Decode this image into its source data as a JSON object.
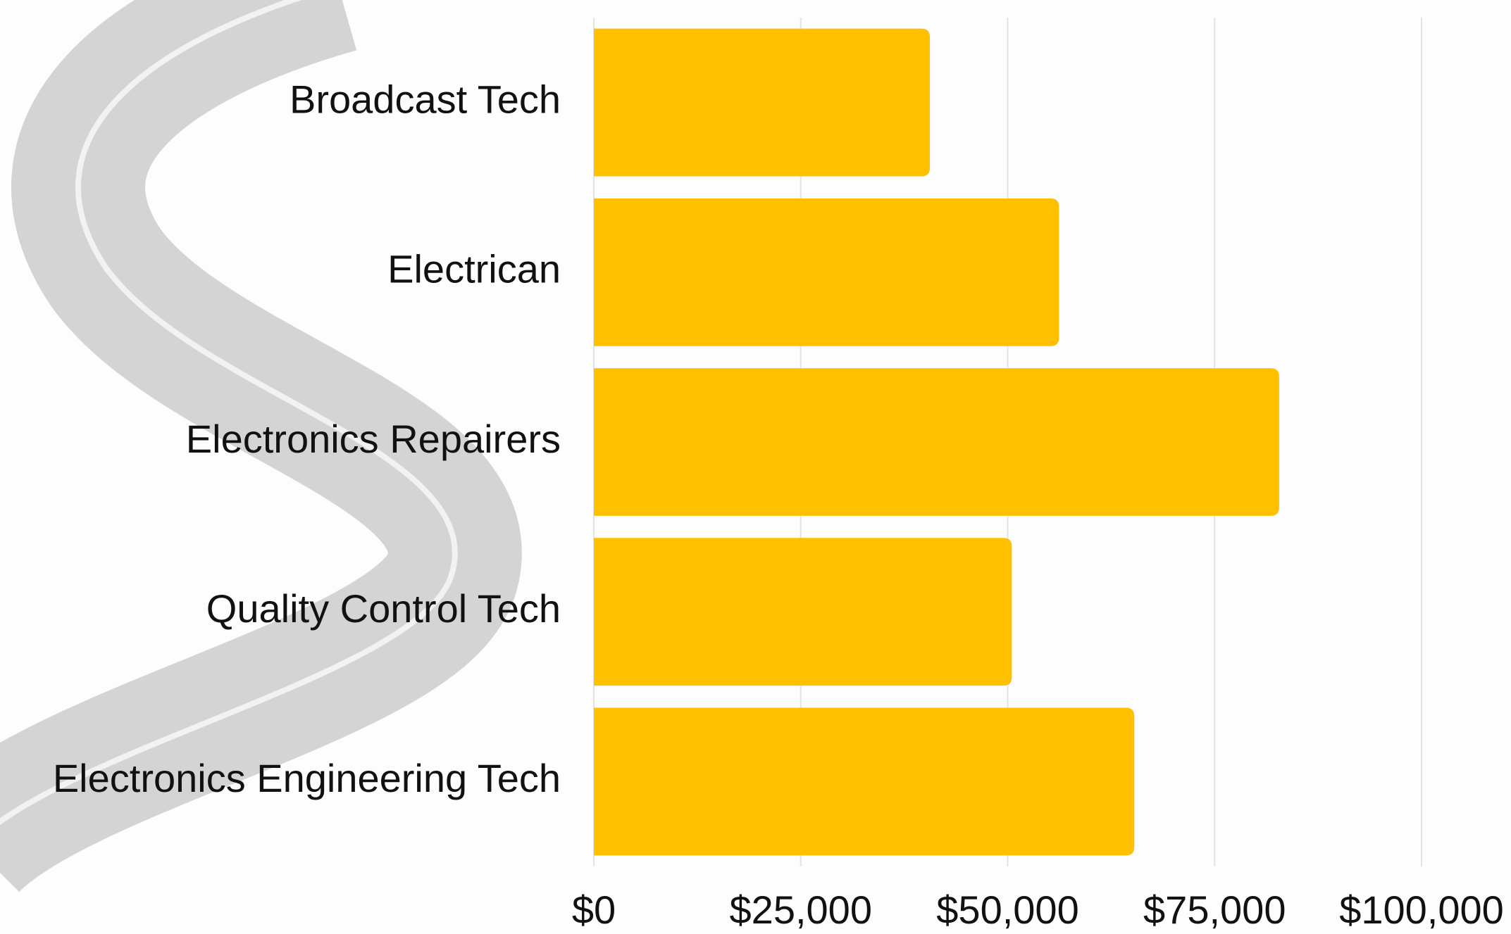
{
  "chart_data": {
    "type": "bar",
    "orientation": "horizontal",
    "categories": [
      "Broadcast Tech",
      "Electrican",
      "Electronics Repairers",
      "Quality Control Tech",
      "Electronics Engineering Tech"
    ],
    "values": [
      40600,
      56200,
      82800,
      50500,
      65300
    ],
    "color": "#ffc000",
    "xlim": [
      0,
      100000
    ],
    "xticks": [
      {
        "value": 0,
        "label": "$0"
      },
      {
        "value": 25000,
        "label": "$25,000"
      },
      {
        "value": 50000,
        "label": "$50,000"
      },
      {
        "value": 75000,
        "label": "$75,000"
      },
      {
        "value": 100000,
        "label": "$100,000"
      }
    ],
    "grid": true
  }
}
